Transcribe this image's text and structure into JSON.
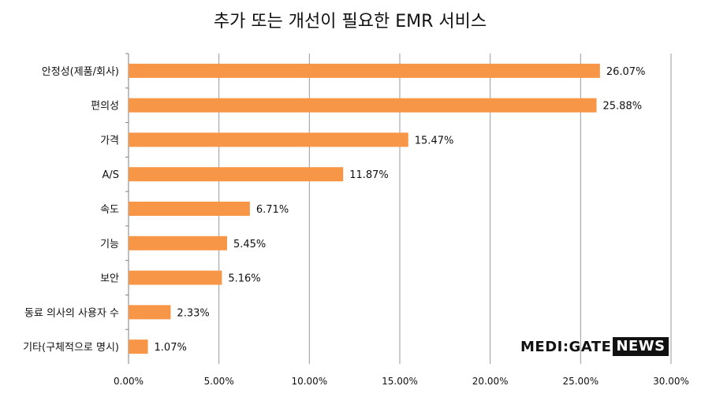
{
  "chart_data": {
    "type": "bar",
    "orientation": "horizontal",
    "title": "추가 또는 개선이 필요한 EMR 서비스",
    "categories": [
      "안정성(제품/회사)",
      "편의성",
      "가격",
      "A/S",
      "속도",
      "기능",
      "보안",
      "동료 의사의 사용자 수",
      "기타(구체적으로 명시)"
    ],
    "values": [
      26.07,
      25.88,
      15.47,
      11.87,
      6.71,
      5.45,
      5.16,
      2.33,
      1.07
    ],
    "value_labels": [
      "26.07%",
      "25.88%",
      "15.47%",
      "11.87%",
      "6.71%",
      "5.45%",
      "5.16%",
      "2.33%",
      "1.07%"
    ],
    "xlim": [
      0,
      30
    ],
    "xticks": [
      0,
      5,
      10,
      15,
      20,
      25,
      30
    ],
    "xtick_labels": [
      "0.00%",
      "5.00%",
      "10.00%",
      "15.00%",
      "20.00%",
      "25.00%",
      "30.00%"
    ],
    "grid": true,
    "legend": "none",
    "bar_color": "#F79646"
  },
  "logo": {
    "brand": "MEDI:GATE",
    "news": "NEWS"
  }
}
